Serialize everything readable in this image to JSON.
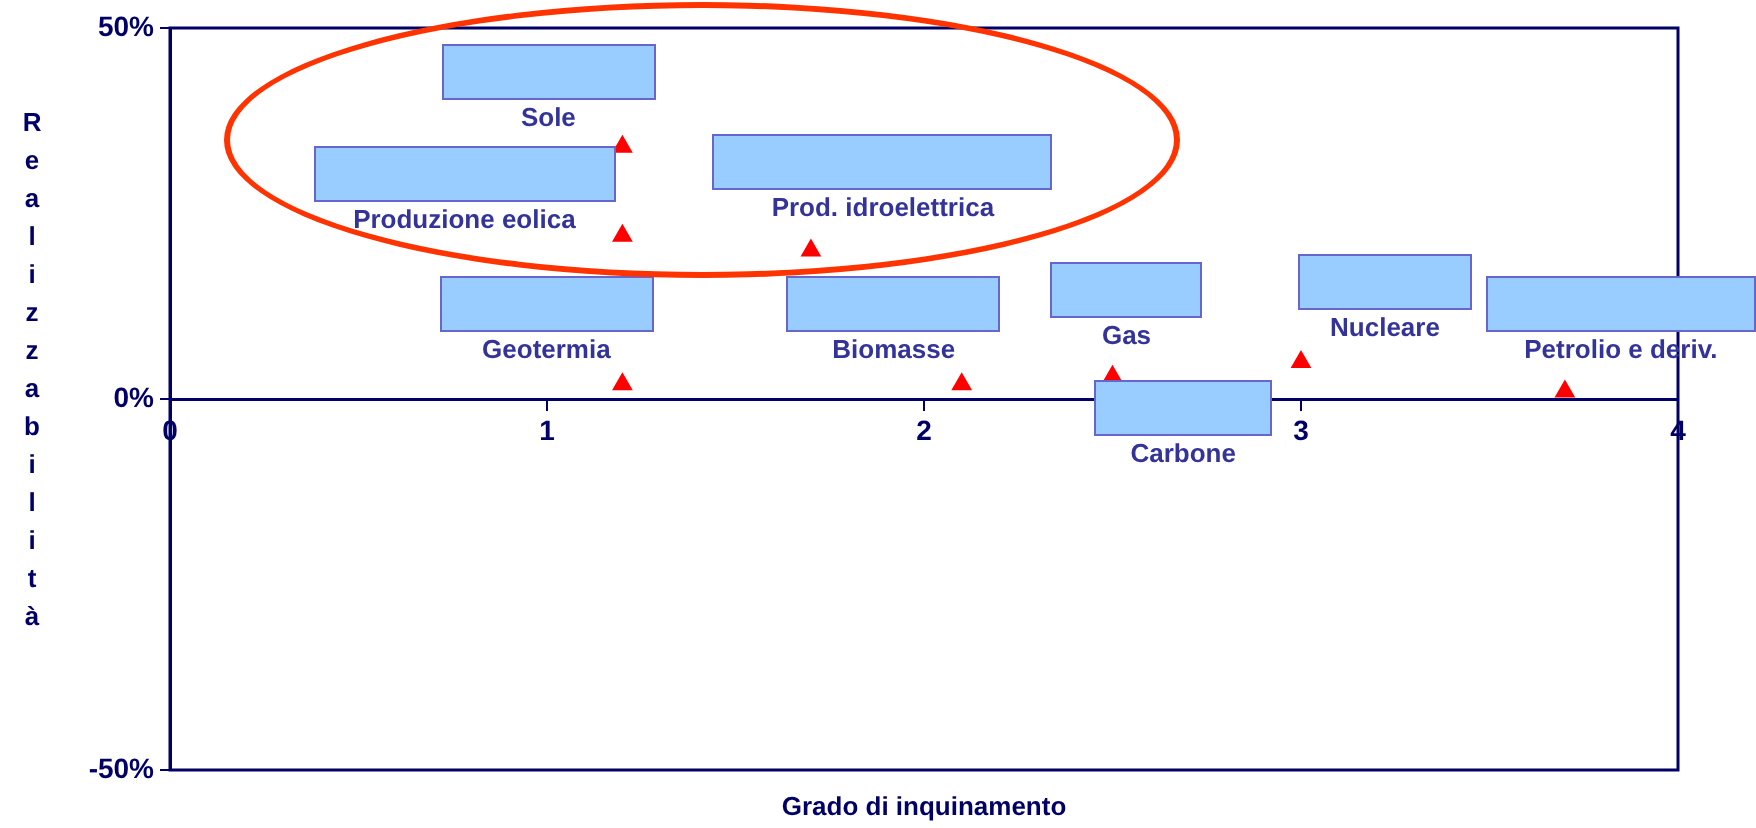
{
  "chart_data": {
    "type": "scatter",
    "xlabel": "Grado di inquinamento",
    "ylabel": "Realizzabilità",
    "x": [
      1.2,
      1.2,
      1.7,
      1.2,
      2.1,
      2.5,
      3.0,
      3.7
    ],
    "series": [
      {
        "color": "#ff0000",
        "values": [
          34,
          22,
          20,
          2,
          2,
          3,
          5,
          1
        ]
      }
    ],
    "annotations": [
      {
        "text": "Sole",
        "x": 1.2,
        "y": 34
      },
      {
        "text": "Produzione eolica",
        "x": 1.2,
        "y": 22
      },
      {
        "text": "Prod. idroelettrica",
        "x": 1.7,
        "y": 20
      },
      {
        "text": "Geotermia",
        "x": 1.2,
        "y": 2
      },
      {
        "text": "Biomasse",
        "x": 2.1,
        "y": 2
      },
      {
        "text": "Gas",
        "x": 2.5,
        "y": 3
      },
      "Carbone",
      {
        "text": "Nucleare",
        "x": 3.0,
        "y": 5
      },
      {
        "text": "Petrolio e deriv.",
        "x": 3.7,
        "y": 1
      }
    ],
    "xlim": [
      0,
      4
    ],
    "xticks": [
      0,
      1,
      2,
      3,
      4
    ],
    "ylim": [
      -50,
      50
    ],
    "yticks": [
      {
        "value": -50,
        "label": "-50%"
      },
      {
        "value": 0,
        "label": "0%"
      },
      {
        "value": 50,
        "label": "50%"
      }
    ],
    "grid": false,
    "legend": false,
    "marker": "triangle"
  }
}
